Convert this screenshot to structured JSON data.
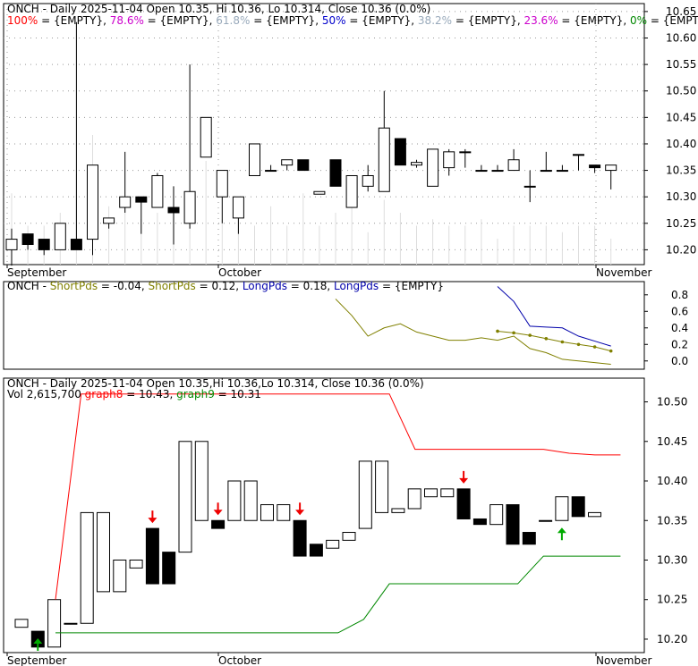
{
  "chart_data": [
    {
      "type": "candlestick",
      "header": {
        "prefix": "ONCH - Daily 2025-11-04 Open 10.35, Hi 10.36, Lo 10.314, Close 10.36 (0.0%)"
      },
      "fib_levels": [
        {
          "label": "100%",
          "value": "{EMPTY}",
          "color": "#ff0000"
        },
        {
          "label": "78.6%",
          "value": "{EMPTY}",
          "color": "#cc00cc"
        },
        {
          "label": "61.8%",
          "value": "{EMPTY}",
          "color": "#99aabb"
        },
        {
          "label": "50%",
          "value": "{EMPTY}",
          "color": "#0000cc"
        },
        {
          "label": "38.2%",
          "value": "{EMPTY}",
          "color": "#99aabb"
        },
        {
          "label": "23.6%",
          "value": "{EMPTY}",
          "color": "#cc00cc"
        },
        {
          "label": "0%",
          "value": "{EMPTY}",
          "color": "#008800"
        }
      ],
      "x_labels": [
        "September",
        "October",
        "November"
      ],
      "y_ticks": [
        10.2,
        10.25,
        10.3,
        10.35,
        10.4,
        10.45,
        10.5,
        10.55,
        10.6,
        10.65
      ],
      "ylim": [
        10.172,
        10.665
      ],
      "candles": [
        {
          "o": 10.2,
          "h": 10.24,
          "l": 10.17,
          "c": 10.22
        },
        {
          "o": 10.23,
          "h": 10.23,
          "l": 10.2,
          "c": 10.21
        },
        {
          "o": 10.22,
          "h": 10.22,
          "l": 10.19,
          "c": 10.2
        },
        {
          "o": 10.2,
          "h": 10.25,
          "l": 10.2,
          "c": 10.25
        },
        {
          "o": 10.22,
          "h": 10.63,
          "l": 10.2,
          "c": 10.2
        },
        {
          "o": 10.22,
          "h": 10.36,
          "l": 10.19,
          "c": 10.36
        },
        {
          "o": 10.25,
          "h": 10.26,
          "l": 10.24,
          "c": 10.26
        },
        {
          "o": 10.28,
          "h": 10.385,
          "l": 10.27,
          "c": 10.3
        },
        {
          "o": 10.3,
          "h": 10.3,
          "l": 10.23,
          "c": 10.29
        },
        {
          "o": 10.28,
          "h": 10.345,
          "l": 10.28,
          "c": 10.34
        },
        {
          "o": 10.28,
          "h": 10.32,
          "l": 10.21,
          "c": 10.27
        },
        {
          "o": 10.25,
          "h": 10.55,
          "l": 10.24,
          "c": 10.31
        },
        {
          "o": 10.375,
          "h": 10.45,
          "l": 10.375,
          "c": 10.45
        },
        {
          "o": 10.3,
          "h": 10.35,
          "l": 10.25,
          "c": 10.35
        },
        {
          "o": 10.26,
          "h": 10.3,
          "l": 10.23,
          "c": 10.3
        },
        {
          "o": 10.34,
          "h": 10.4,
          "l": 10.34,
          "c": 10.4
        },
        {
          "o": 10.35,
          "h": 10.36,
          "l": 10.35,
          "c": 10.35
        },
        {
          "o": 10.36,
          "h": 10.37,
          "l": 10.35,
          "c": 10.37
        },
        {
          "o": 10.37,
          "h": 10.37,
          "l": 10.35,
          "c": 10.35
        },
        {
          "o": 10.305,
          "h": 10.31,
          "l": 10.305,
          "c": 10.31
        },
        {
          "o": 10.37,
          "h": 10.37,
          "l": 10.32,
          "c": 10.32
        },
        {
          "o": 10.28,
          "h": 10.34,
          "l": 10.28,
          "c": 10.34
        },
        {
          "o": 10.32,
          "h": 10.36,
          "l": 10.31,
          "c": 10.34
        },
        {
          "o": 10.31,
          "h": 10.5,
          "l": 10.31,
          "c": 10.43
        },
        {
          "o": 10.41,
          "h": 10.41,
          "l": 10.36,
          "c": 10.36
        },
        {
          "o": 10.36,
          "h": 10.37,
          "l": 10.355,
          "c": 10.365
        },
        {
          "o": 10.32,
          "h": 10.39,
          "l": 10.32,
          "c": 10.39
        },
        {
          "o": 10.355,
          "h": 10.39,
          "l": 10.34,
          "c": 10.385
        },
        {
          "o": 10.385,
          "h": 10.39,
          "l": 10.355,
          "c": 10.385
        },
        {
          "o": 10.35,
          "h": 10.36,
          "l": 10.35,
          "c": 10.35
        },
        {
          "o": 10.35,
          "h": 10.36,
          "l": 10.35,
          "c": 10.35
        },
        {
          "o": 10.35,
          "h": 10.39,
          "l": 10.35,
          "c": 10.37
        },
        {
          "o": 10.32,
          "h": 10.35,
          "l": 10.29,
          "c": 10.32
        },
        {
          "o": 10.35,
          "h": 10.385,
          "l": 10.35,
          "c": 10.35
        },
        {
          "o": 10.35,
          "h": 10.36,
          "l": 10.35,
          "c": 10.35
        },
        {
          "o": 10.38,
          "h": 10.38,
          "l": 10.35,
          "c": 10.38
        },
        {
          "o": 10.36,
          "h": 10.36,
          "l": 10.345,
          "c": 10.355
        },
        {
          "o": 10.35,
          "h": 10.36,
          "l": 10.314,
          "c": 10.36
        }
      ],
      "volume": [
        0.55,
        0.3,
        0.3,
        0.4,
        0.7,
        1.0,
        0.45,
        0.5,
        0.35,
        0.4,
        0.4,
        0.5,
        0.8,
        0.35,
        0.4,
        0.3,
        0.45,
        0.3,
        0.55,
        0.3,
        0.4,
        0.6,
        0.25,
        0.5,
        0.4,
        0.3,
        0.35,
        0.3,
        0.3,
        0.35,
        0.2,
        0.3,
        0.3,
        0.3,
        0.25,
        0.3,
        0.3,
        0.2
      ]
    },
    {
      "type": "line",
      "header": {
        "prefix": "ONCH - ",
        "items": [
          {
            "label": "ShortPds",
            "value": "-0.04",
            "color": "#808000"
          },
          {
            "label": "ShortPds",
            "value": "0.12",
            "color": "#808000"
          },
          {
            "label": "LongPds",
            "value": "0.18",
            "color": "#0000aa"
          },
          {
            "label": "LongPds",
            "value": "{EMPTY}",
            "color": "#0000aa"
          }
        ]
      },
      "y_ticks": [
        0.0,
        0.2,
        0.4,
        0.6,
        0.8
      ],
      "ylim": [
        -0.1,
        0.96
      ],
      "series": [
        {
          "color": "#808000",
          "markers": false,
          "points": [
            [
              20,
              0.75
            ],
            [
              21,
              0.55
            ],
            [
              22,
              0.3
            ],
            [
              23,
              0.4
            ],
            [
              24,
              0.45
            ],
            [
              25,
              0.35
            ],
            [
              26,
              0.3
            ],
            [
              27,
              0.25
            ],
            [
              28,
              0.25
            ],
            [
              29,
              0.28
            ],
            [
              30,
              0.25
            ],
            [
              31,
              0.3
            ],
            [
              32,
              0.15
            ],
            [
              33,
              0.1
            ],
            [
              34,
              0.02
            ],
            [
              35,
              0.0
            ],
            [
              36,
              -0.02
            ],
            [
              37,
              -0.04
            ]
          ]
        },
        {
          "color": "#808000",
          "markers": true,
          "points": [
            [
              30,
              0.36
            ],
            [
              31,
              0.34
            ],
            [
              32,
              0.31
            ],
            [
              33,
              0.27
            ],
            [
              34,
              0.23
            ],
            [
              35,
              0.2
            ],
            [
              36,
              0.17
            ],
            [
              37,
              0.12
            ]
          ]
        },
        {
          "color": "#0000aa",
          "markers": false,
          "points": [
            [
              30,
              0.9
            ],
            [
              31,
              0.72
            ],
            [
              32,
              0.42
            ],
            [
              33,
              0.41
            ],
            [
              34,
              0.4
            ],
            [
              35,
              0.3
            ],
            [
              36,
              0.24
            ],
            [
              37,
              0.18
            ]
          ]
        }
      ]
    },
    {
      "type": "kagi",
      "header": {
        "line1": "ONCH - Daily 2025-11-04 Open 10.35,Hi 10.36,Lo 10.314, Close 10.36 (0.0%)",
        "vol_label": "Vol 2,615,700",
        "items": [
          {
            "label": "graph8",
            "value": "10.43",
            "color": "#ff0000"
          },
          {
            "label": "graph9",
            "value": "10.31",
            "color": "#008800"
          }
        ]
      },
      "x_labels": [
        "September",
        "October",
        "November"
      ],
      "y_ticks": [
        10.2,
        10.25,
        10.3,
        10.35,
        10.4,
        10.45,
        10.5
      ],
      "ylim": [
        10.183,
        10.53
      ],
      "bars": [
        {
          "o": 10.215,
          "c": 10.225
        },
        {
          "o": 10.21,
          "c": 10.19
        },
        {
          "o": 10.19,
          "c": 10.25
        },
        {
          "o": 10.22,
          "c": 10.22
        },
        {
          "o": 10.22,
          "c": 10.36
        },
        {
          "o": 10.26,
          "c": 10.36
        },
        {
          "o": 10.26,
          "c": 10.3
        },
        {
          "o": 10.29,
          "c": 10.3
        },
        {
          "o": 10.34,
          "c": 10.27
        },
        {
          "o": 10.31,
          "c": 10.27
        },
        {
          "o": 10.31,
          "c": 10.45
        },
        {
          "o": 10.35,
          "c": 10.45
        },
        {
          "o": 10.35,
          "c": 10.34
        },
        {
          "o": 10.35,
          "c": 10.4
        },
        {
          "o": 10.35,
          "c": 10.4
        },
        {
          "o": 10.35,
          "c": 10.37
        },
        {
          "o": 10.35,
          "c": 10.37
        },
        {
          "o": 10.35,
          "c": 10.305
        },
        {
          "o": 10.32,
          "c": 10.305
        },
        {
          "o": 10.315,
          "c": 10.325
        },
        {
          "o": 10.325,
          "c": 10.335
        },
        {
          "o": 10.34,
          "c": 10.425
        },
        {
          "o": 10.36,
          "c": 10.425
        },
        {
          "o": 10.36,
          "c": 10.365
        },
        {
          "o": 10.365,
          "c": 10.39
        },
        {
          "o": 10.38,
          "c": 10.39
        },
        {
          "o": 10.38,
          "c": 10.39
        },
        {
          "o": 10.39,
          "c": 10.352
        },
        {
          "o": 10.352,
          "c": 10.345
        },
        {
          "o": 10.345,
          "c": 10.37
        },
        {
          "o": 10.37,
          "c": 10.32
        },
        {
          "o": 10.335,
          "c": 10.32
        },
        {
          "o": 10.35,
          "c": 10.35
        },
        {
          "o": 10.35,
          "c": 10.38
        },
        {
          "o": 10.38,
          "c": 10.355
        },
        {
          "o": 10.355,
          "c": 10.36
        }
      ],
      "red_line": [
        [
          0,
          10.25
        ],
        [
          1,
          10.51
        ],
        [
          12,
          10.51
        ],
        [
          13,
          10.51
        ],
        [
          14,
          10.44
        ],
        [
          19,
          10.44
        ],
        [
          20,
          10.435
        ],
        [
          21,
          10.433
        ],
        [
          22,
          10.433
        ]
      ],
      "green_line": [
        [
          0,
          10.208
        ],
        [
          1,
          10.208
        ],
        [
          11,
          10.208
        ],
        [
          12,
          10.225
        ],
        [
          13,
          10.27
        ],
        [
          18,
          10.27
        ],
        [
          19,
          10.305
        ],
        [
          22,
          10.305
        ]
      ],
      "down_arrows": [
        8,
        12,
        17,
        27
      ],
      "up_arrows": [
        1,
        33
      ]
    }
  ]
}
